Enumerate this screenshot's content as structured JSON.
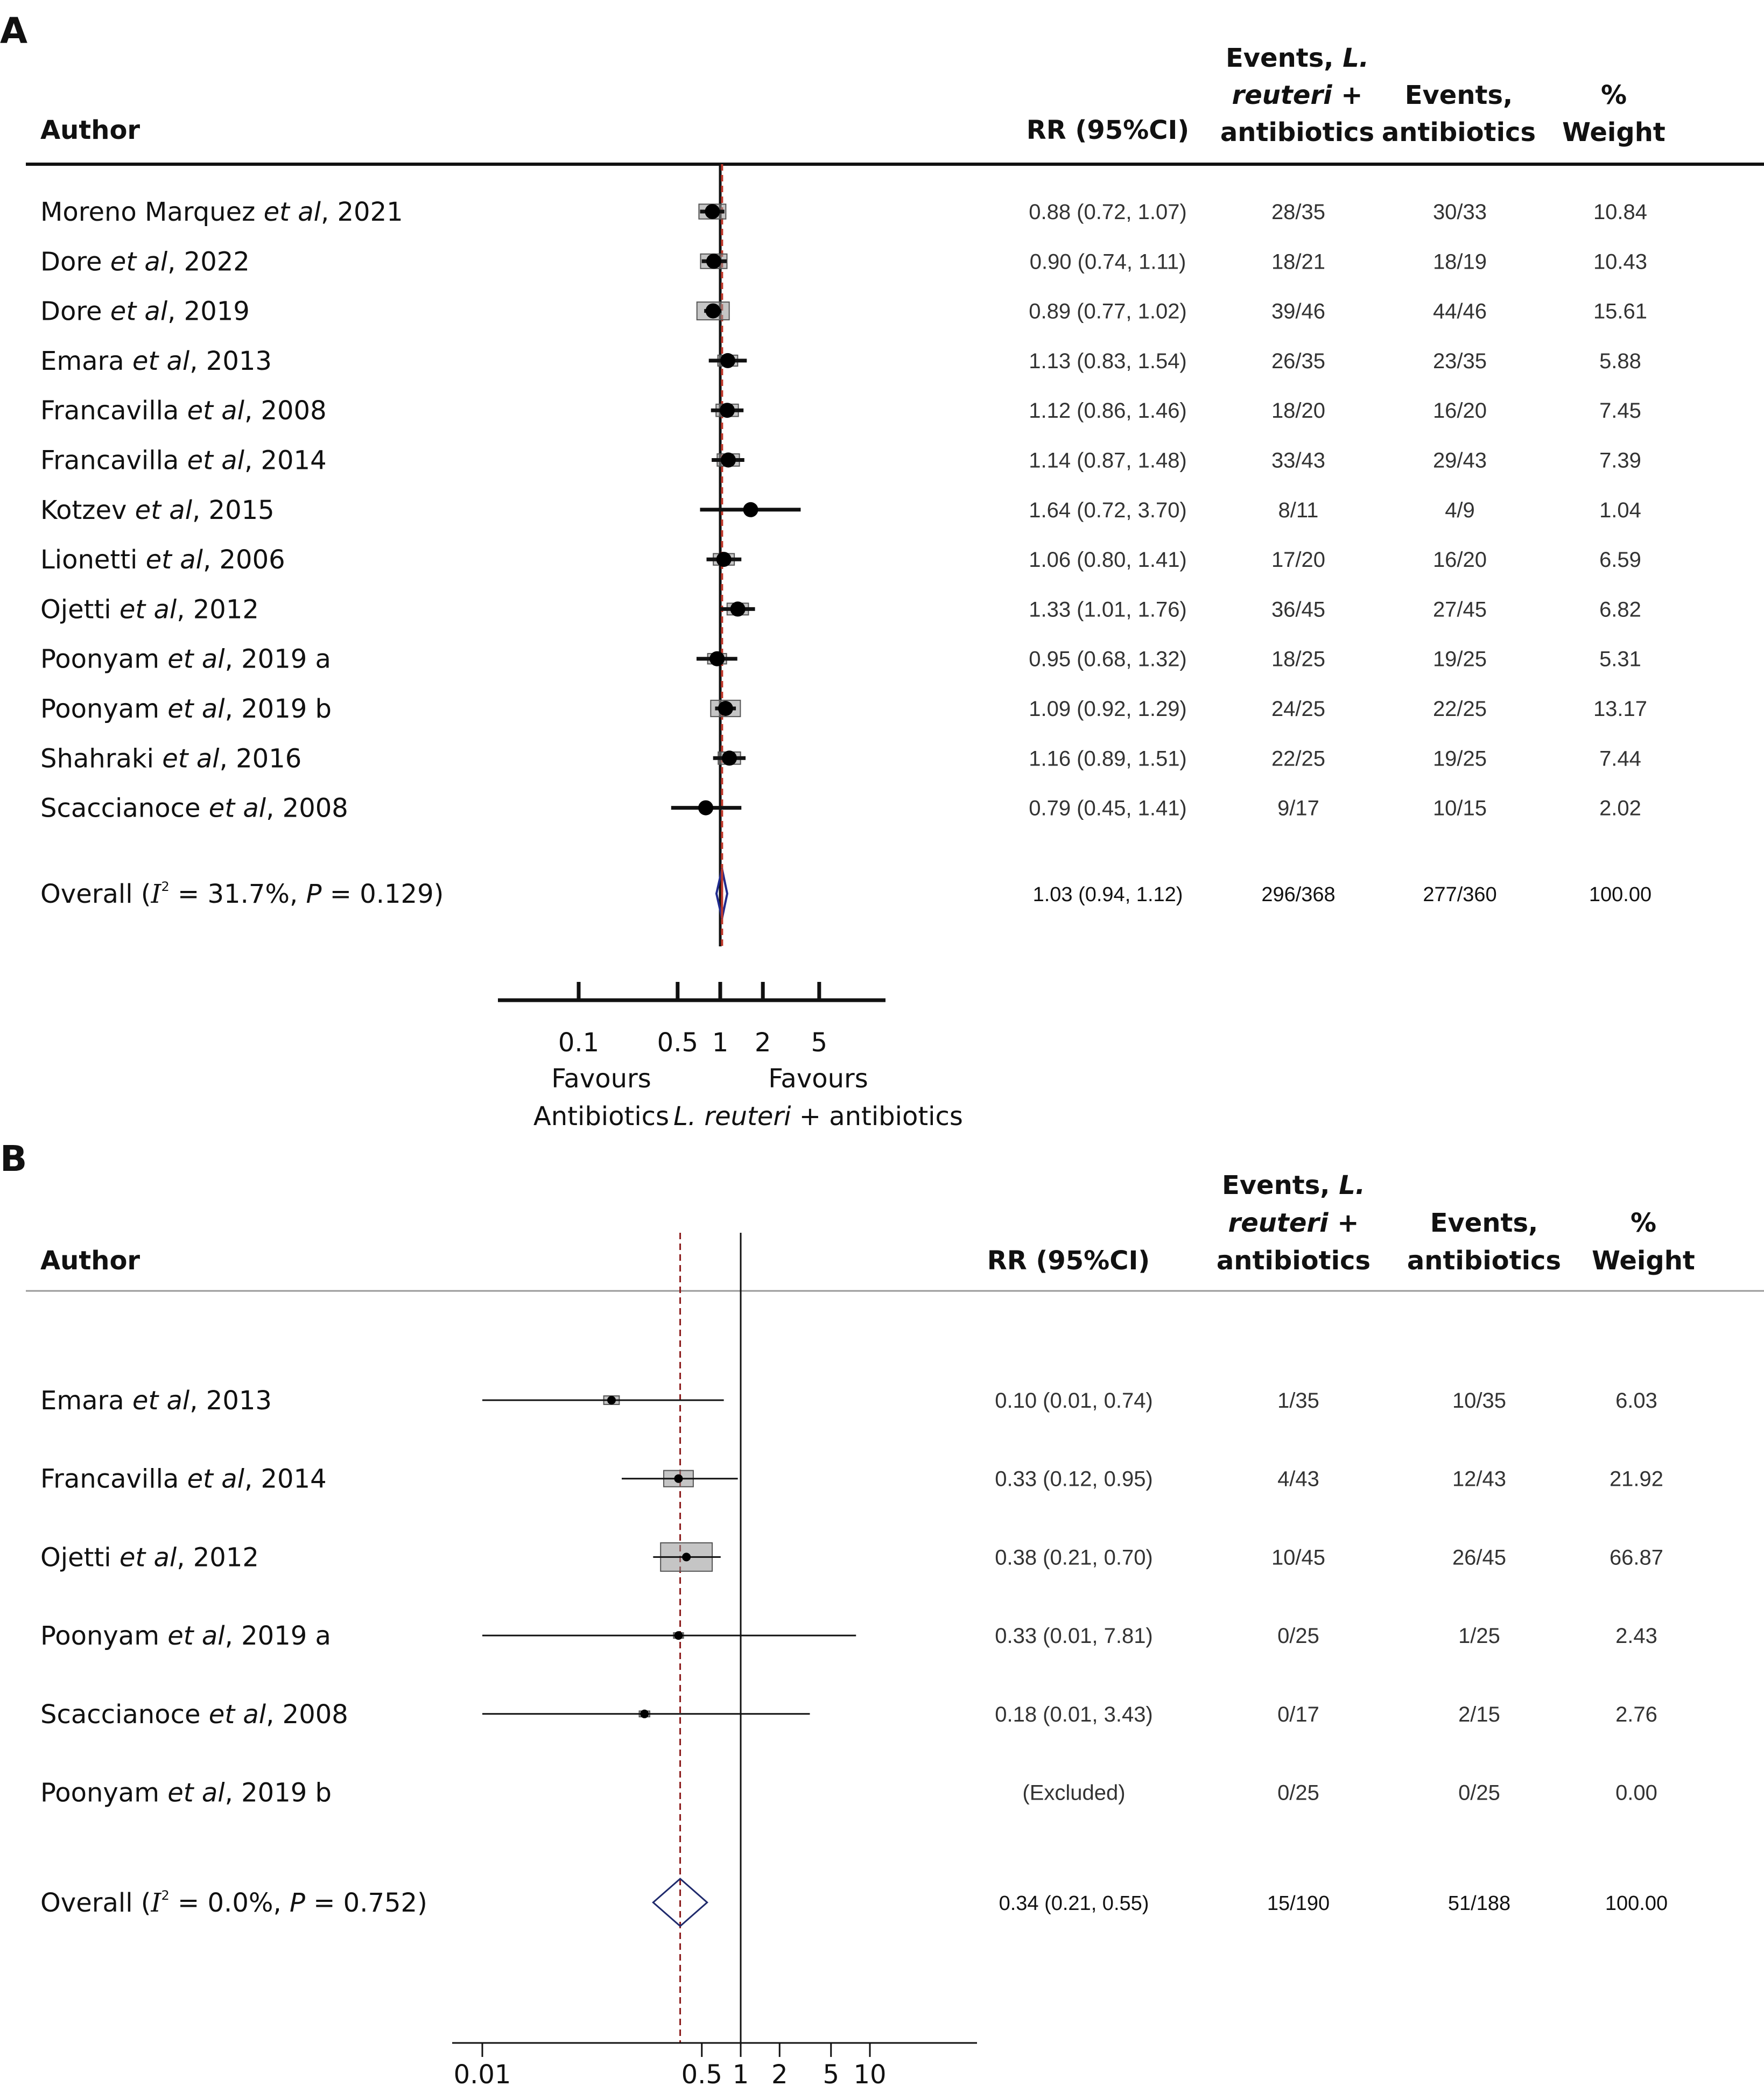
{
  "chart_data": [
    {
      "type": "forest",
      "panel_label": "A",
      "headers": {
        "author": "Author",
        "rr": "RR (95%CI)",
        "events_treat": [
          "Events, L.",
          "reuteri +",
          "antibiotics"
        ],
        "events_ctrl": [
          "Events,",
          "antibiotics"
        ],
        "weight": [
          "%",
          "Weight"
        ]
      },
      "studies": [
        {
          "author": "Moreno Marquez",
          "etal": "et al",
          "year": ", 2021",
          "rr": 0.88,
          "lo": 0.72,
          "hi": 1.07,
          "rr_text": "0.88 (0.72, 1.07)",
          "ev_treat": "28/35",
          "ev_ctrl": "30/33",
          "weight": "10.84"
        },
        {
          "author": "Dore",
          "etal": "et al",
          "year": ", 2022",
          "rr": 0.9,
          "lo": 0.74,
          "hi": 1.11,
          "rr_text": "0.90 (0.74, 1.11)",
          "ev_treat": "18/21",
          "ev_ctrl": "18/19",
          "weight": "10.43"
        },
        {
          "author": "Dore",
          "etal": "et al",
          "year": ", 2019",
          "rr": 0.89,
          "lo": 0.77,
          "hi": 1.02,
          "rr_text": "0.89 (0.77, 1.02)",
          "ev_treat": "39/46",
          "ev_ctrl": "44/46",
          "weight": "15.61"
        },
        {
          "author": "Emara",
          "etal": "et al",
          "year": ", 2013",
          "rr": 1.13,
          "lo": 0.83,
          "hi": 1.54,
          "rr_text": "1.13 (0.83, 1.54)",
          "ev_treat": "26/35",
          "ev_ctrl": "23/35",
          "weight": "5.88"
        },
        {
          "author": "Francavilla",
          "etal": "et al",
          "year": ", 2008",
          "rr": 1.12,
          "lo": 0.86,
          "hi": 1.46,
          "rr_text": "1.12 (0.86, 1.46)",
          "ev_treat": "18/20",
          "ev_ctrl": "16/20",
          "weight": "7.45"
        },
        {
          "author": "Francavilla",
          "etal": "et al",
          "year": ", 2014",
          "rr": 1.14,
          "lo": 0.87,
          "hi": 1.48,
          "rr_text": "1.14 (0.87, 1.48)",
          "ev_treat": "33/43",
          "ev_ctrl": "29/43",
          "weight": "7.39"
        },
        {
          "author": "Kotzev",
          "etal": "et al",
          "year": ", 2015",
          "rr": 1.64,
          "lo": 0.72,
          "hi": 3.7,
          "rr_text": "1.64 (0.72, 3.70)",
          "ev_treat": "8/11",
          "ev_ctrl": "4/9",
          "weight": "1.04"
        },
        {
          "author": "Lionetti",
          "etal": "et al",
          "year": ", 2006",
          "rr": 1.06,
          "lo": 0.8,
          "hi": 1.41,
          "rr_text": "1.06 (0.80, 1.41)",
          "ev_treat": "17/20",
          "ev_ctrl": "16/20",
          "weight": "6.59"
        },
        {
          "author": "Ojetti",
          "etal": "et al",
          "year": ", 2012",
          "rr": 1.33,
          "lo": 1.01,
          "hi": 1.76,
          "rr_text": "1.33 (1.01, 1.76)",
          "ev_treat": "36/45",
          "ev_ctrl": "27/45",
          "weight": "6.82"
        },
        {
          "author": "Poonyam",
          "etal": "et al",
          "year": ", 2019 a",
          "rr": 0.95,
          "lo": 0.68,
          "hi": 1.32,
          "rr_text": "0.95 (0.68, 1.32)",
          "ev_treat": "18/25",
          "ev_ctrl": "19/25",
          "weight": "5.31"
        },
        {
          "author": "Poonyam",
          "etal": "et al",
          "year": ", 2019 b",
          "rr": 1.09,
          "lo": 0.92,
          "hi": 1.29,
          "rr_text": "1.09 (0.92, 1.29)",
          "ev_treat": "24/25",
          "ev_ctrl": "22/25",
          "weight": "13.17"
        },
        {
          "author": "Shahraki",
          "etal": "et al",
          "year": ", 2016",
          "rr": 1.16,
          "lo": 0.89,
          "hi": 1.51,
          "rr_text": "1.16 (0.89, 1.51)",
          "ev_treat": "22/25",
          "ev_ctrl": "19/25",
          "weight": "7.44"
        },
        {
          "author": "Scaccianoce",
          "etal": "et al",
          "year": ", 2008",
          "rr": 0.79,
          "lo": 0.45,
          "hi": 1.41,
          "rr_text": "0.79 (0.45, 1.41)",
          "ev_treat": "9/17",
          "ev_ctrl": "10/15",
          "weight": "2.02"
        }
      ],
      "overall": {
        "label_pre": "Overall (",
        "i2_symbol": "I",
        "i2_sup": "2",
        "label_mid": " = 31.7%, ",
        "p_symbol": "P",
        "label_post": " = 0.129)",
        "rr": 1.03,
        "lo": 0.94,
        "hi": 1.12,
        "rr_text": "1.03 (0.94, 1.12)",
        "ev_treat": "296/368",
        "ev_ctrl": "277/360",
        "weight": "100.00"
      },
      "x_scale": "log",
      "x_ticks": [
        0.1,
        0.5,
        1,
        2,
        5
      ],
      "x_tick_labels": [
        "0.1",
        "0.5",
        "1",
        "2",
        "5"
      ],
      "xlim": [
        0.07,
        10
      ],
      "favours_left": [
        "Favours",
        "Antibiotics"
      ],
      "favours_right_line1": "Favours",
      "favours_right_italic": "L. reuteri",
      "favours_right_tail": " + antibiotics",
      "colors": {
        "overall_line": "#c0392b",
        "null_line": "#111111",
        "diamond": "#1f2a8c",
        "box": "#bdbdbd"
      }
    },
    {
      "type": "forest",
      "panel_label": "B",
      "headers": {
        "author": "Author",
        "rr": "RR (95%CI)",
        "events_treat": [
          "Events, L.",
          "reuteri +",
          "antibiotics"
        ],
        "events_ctrl": [
          "Events,",
          "antibiotics"
        ],
        "weight": [
          "%",
          "Weight"
        ]
      },
      "studies": [
        {
          "author": "Emara",
          "etal": "et al",
          "year": ", 2013",
          "rr": 0.1,
          "lo": 0.01,
          "hi": 0.74,
          "rr_text": "0.10 (0.01, 0.74)",
          "ev_treat": "1/35",
          "ev_ctrl": "10/35",
          "weight": "6.03"
        },
        {
          "author": "Francavilla",
          "etal": "et al",
          "year": ", 2014",
          "rr": 0.33,
          "lo": 0.12,
          "hi": 0.95,
          "rr_text": "0.33 (0.12, 0.95)",
          "ev_treat": "4/43",
          "ev_ctrl": "12/43",
          "weight": "21.92"
        },
        {
          "author": "Ojetti",
          "etal": "et al",
          "year": ", 2012",
          "rr": 0.38,
          "lo": 0.21,
          "hi": 0.7,
          "rr_text": "0.38 (0.21, 0.70)",
          "ev_treat": "10/45",
          "ev_ctrl": "26/45",
          "weight": "66.87"
        },
        {
          "author": "Poonyam",
          "etal": "et al",
          "year": ", 2019 a",
          "rr": 0.33,
          "lo": 0.01,
          "hi": 7.81,
          "rr_text": "0.33 (0.01, 7.81)",
          "ev_treat": "0/25",
          "ev_ctrl": "1/25",
          "weight": "2.43"
        },
        {
          "author": "Scaccianoce",
          "etal": "et al",
          "year": ", 2008",
          "rr": 0.18,
          "lo": 0.01,
          "hi": 3.43,
          "rr_text": "0.18 (0.01, 3.43)",
          "ev_treat": "0/17",
          "ev_ctrl": "2/15",
          "weight": "2.76"
        },
        {
          "author": "Poonyam",
          "etal": "et al",
          "year": ", 2019 b",
          "rr": null,
          "lo": null,
          "hi": null,
          "rr_text": "(Excluded)",
          "ev_treat": "0/25",
          "ev_ctrl": "0/25",
          "weight": "0.00"
        }
      ],
      "overall": {
        "label_pre": "Overall (",
        "i2_symbol": "I",
        "i2_sup": "2",
        "label_mid": " = 0.0%, ",
        "p_symbol": "P",
        "label_post": " = 0.752)",
        "rr": 0.34,
        "lo": 0.21,
        "hi": 0.55,
        "rr_text": "0.34 (0.21, 0.55)",
        "ev_treat": "15/190",
        "ev_ctrl": "51/188",
        "weight": "100.00"
      },
      "x_scale": "log",
      "x_ticks": [
        0.01,
        0.5,
        1,
        2,
        5,
        10
      ],
      "x_tick_labels": [
        "0.01",
        "0.5",
        "1",
        "2",
        "5",
        "10"
      ],
      "xlim": [
        0.005,
        50
      ],
      "colors": {
        "overall_line": "#8b1a1a",
        "null_line": "#111111",
        "diamond": "#1f2a6c",
        "box": "#bdbdbd"
      }
    }
  ]
}
